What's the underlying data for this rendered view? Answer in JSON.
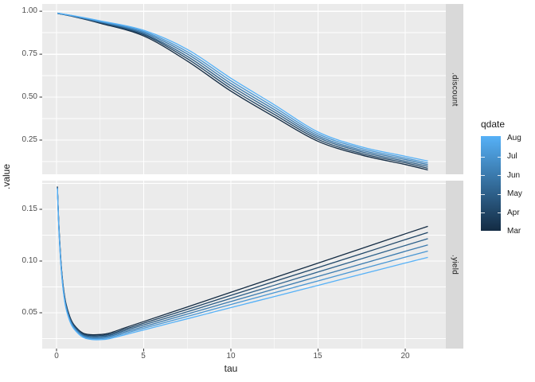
{
  "chart_data": {
    "type": "line",
    "title": "",
    "xlabel": "tau",
    "ylabel": ".value",
    "grid": "on",
    "panel_background": "#EBEBEB",
    "strip_background": "#D9D9D9",
    "gridline_color": "#FFFFFF",
    "axis_text_color": "#4D4D4D",
    "xlim": [
      -0.82,
      22.33
    ],
    "x_ticks": {
      "major": [
        0,
        5,
        10,
        15,
        20
      ],
      "minor": [
        2.5,
        7.5,
        12.5,
        17.5
      ],
      "labels": [
        "0",
        "5",
        "10",
        "15",
        "20"
      ]
    },
    "legend": {
      "title": "qdate",
      "position": "right",
      "labels": [
        "Aug",
        "Jul",
        "Jun",
        "May",
        "Apr",
        "Mar"
      ],
      "gradient_top": "#56B1F7",
      "gradient_bottom": "#132B43"
    },
    "series_names": [
      "Mar",
      "Apr",
      "May",
      "Jun",
      "Jul",
      "Aug"
    ],
    "series_colors": [
      "#132B43",
      "#204667",
      "#2E618B",
      "#3B7BAF",
      "#4996D3",
      "#56B1F7"
    ],
    "facets": [
      {
        "name": ".discount",
        "ylim": [
          0.051,
          1.042
        ],
        "y_ticks": {
          "major": [
            1.0,
            0.75,
            0.5,
            0.25
          ],
          "minor": [
            0.875,
            0.625,
            0.375,
            0.125
          ],
          "labels": [
            "1.00",
            "0.75",
            "0.50",
            "0.25"
          ]
        },
        "series": [
          {
            "name": "Mar",
            "points": [
              [
                0.05,
                0.987
              ],
              [
                1,
                0.968
              ],
              [
                2.5,
                0.93
              ],
              [
                5,
                0.856
              ],
              [
                7.5,
                0.71
              ],
              [
                10,
                0.535
              ],
              [
                12.5,
                0.385
              ],
              [
                15,
                0.243
              ],
              [
                17.5,
                0.163
              ],
              [
                20,
                0.108
              ],
              [
                21.3,
                0.076
              ]
            ]
          },
          {
            "name": "Apr",
            "points": [
              [
                0.05,
                0.987
              ],
              [
                1,
                0.969
              ],
              [
                2.5,
                0.933
              ],
              [
                5,
                0.863
              ],
              [
                7.5,
                0.724
              ],
              [
                10,
                0.55
              ],
              [
                12.5,
                0.399
              ],
              [
                15,
                0.254
              ],
              [
                17.5,
                0.172
              ],
              [
                20,
                0.118
              ],
              [
                21.3,
                0.086
              ]
            ]
          },
          {
            "name": "May",
            "points": [
              [
                0.05,
                0.988
              ],
              [
                1,
                0.97
              ],
              [
                2.5,
                0.936
              ],
              [
                5,
                0.869
              ],
              [
                7.5,
                0.737
              ],
              [
                10,
                0.565
              ],
              [
                12.5,
                0.413
              ],
              [
                15,
                0.265
              ],
              [
                17.5,
                0.182
              ],
              [
                20,
                0.127
              ],
              [
                21.3,
                0.097
              ]
            ]
          },
          {
            "name": "Jun",
            "points": [
              [
                0.05,
                0.988
              ],
              [
                1,
                0.971
              ],
              [
                2.5,
                0.938
              ],
              [
                5,
                0.876
              ],
              [
                7.5,
                0.751
              ],
              [
                10,
                0.58
              ],
              [
                12.5,
                0.427
              ],
              [
                15,
                0.275
              ],
              [
                17.5,
                0.191
              ],
              [
                20,
                0.137
              ],
              [
                21.3,
                0.107
              ]
            ]
          },
          {
            "name": "Jul",
            "points": [
              [
                0.05,
                0.989
              ],
              [
                1,
                0.972
              ],
              [
                2.5,
                0.941
              ],
              [
                5,
                0.882
              ],
              [
                7.5,
                0.764
              ],
              [
                10,
                0.595
              ],
              [
                12.5,
                0.441
              ],
              [
                15,
                0.286
              ],
              [
                17.5,
                0.201
              ],
              [
                20,
                0.146
              ],
              [
                21.3,
                0.117
              ]
            ]
          },
          {
            "name": "Aug",
            "points": [
              [
                0.05,
                0.989
              ],
              [
                1,
                0.973
              ],
              [
                2.5,
                0.944
              ],
              [
                5,
                0.889
              ],
              [
                7.5,
                0.778
              ],
              [
                10,
                0.61
              ],
              [
                12.5,
                0.455
              ],
              [
                15,
                0.297
              ],
              [
                17.5,
                0.21
              ],
              [
                20,
                0.156
              ],
              [
                21.3,
                0.128
              ]
            ]
          }
        ]
      },
      {
        "name": ".yield",
        "ylim": [
          0.0154,
          0.1777
        ],
        "y_ticks": {
          "major": [
            0.15,
            0.1,
            0.05
          ],
          "minor": [
            0.175,
            0.125,
            0.075,
            0.025
          ],
          "labels": [
            "0.15",
            "0.10",
            "0.05"
          ]
        },
        "series": [
          {
            "name": "Mar",
            "points": [
              [
                0.05,
                0.172
              ],
              [
                0.15,
                0.13
              ],
              [
                0.3,
                0.09
              ],
              [
                0.5,
                0.0625
              ],
              [
                0.75,
                0.047
              ],
              [
                1,
                0.0385
              ],
              [
                1.5,
                0.0305
              ],
              [
                2,
                0.0288
              ],
              [
                2.5,
                0.029
              ],
              [
                3,
                0.0302
              ],
              [
                4,
                0.0359
              ],
              [
                5,
                0.0415
              ],
              [
                7.5,
                0.0556
              ],
              [
                10,
                0.0698
              ],
              [
                12.5,
                0.0839
              ],
              [
                15,
                0.098
              ],
              [
                17.5,
                0.1121
              ],
              [
                20,
                0.1263
              ],
              [
                21.3,
                0.1336
              ]
            ]
          },
          {
            "name": "Apr",
            "points": [
              [
                0.05,
                0.1716
              ],
              [
                0.15,
                0.1292
              ],
              [
                0.3,
                0.0892
              ],
              [
                0.5,
                0.0616
              ],
              [
                0.75,
                0.0461
              ],
              [
                1,
                0.0377
              ],
              [
                1.5,
                0.0297
              ],
              [
                2,
                0.0279
              ],
              [
                2.5,
                0.028
              ],
              [
                3,
                0.0291
              ],
              [
                4,
                0.0345
              ],
              [
                5,
                0.0399
              ],
              [
                7.5,
                0.0533
              ],
              [
                10,
                0.0668
              ],
              [
                12.5,
                0.0803
              ],
              [
                15,
                0.0937
              ],
              [
                17.5,
                0.1071
              ],
              [
                20,
                0.1207
              ],
              [
                21.3,
                0.1276
              ]
            ]
          },
          {
            "name": "May",
            "points": [
              [
                0.05,
                0.1712
              ],
              [
                0.15,
                0.1284
              ],
              [
                0.3,
                0.0884
              ],
              [
                0.5,
                0.0607
              ],
              [
                0.75,
                0.0452
              ],
              [
                1,
                0.0369
              ],
              [
                1.5,
                0.0289
              ],
              [
                2,
                0.027
              ],
              [
                2.5,
                0.027
              ],
              [
                3,
                0.028
              ],
              [
                4,
                0.0332
              ],
              [
                5,
                0.0383
              ],
              [
                7.5,
                0.051
              ],
              [
                10,
                0.0639
              ],
              [
                12.5,
                0.0766
              ],
              [
                15,
                0.0894
              ],
              [
                17.5,
                0.1022
              ],
              [
                20,
                0.115
              ],
              [
                21.3,
                0.1216
              ]
            ]
          },
          {
            "name": "Jun",
            "points": [
              [
                0.05,
                0.1708
              ],
              [
                0.15,
                0.1276
              ],
              [
                0.3,
                0.0876
              ],
              [
                0.5,
                0.0598
              ],
              [
                0.75,
                0.0443
              ],
              [
                1,
                0.0361
              ],
              [
                1.5,
                0.0281
              ],
              [
                2,
                0.026
              ],
              [
                2.5,
                0.026
              ],
              [
                3,
                0.027
              ],
              [
                4,
                0.0318
              ],
              [
                5,
                0.0366
              ],
              [
                7.5,
                0.0488
              ],
              [
                10,
                0.0609
              ],
              [
                12.5,
                0.073
              ],
              [
                15,
                0.0851
              ],
              [
                17.5,
                0.0972
              ],
              [
                20,
                0.1094
              ],
              [
                21.3,
                0.1156
              ]
            ]
          },
          {
            "name": "Jul",
            "points": [
              [
                0.05,
                0.1704
              ],
              [
                0.15,
                0.1268
              ],
              [
                0.3,
                0.0868
              ],
              [
                0.5,
                0.0589
              ],
              [
                0.75,
                0.0434
              ],
              [
                1,
                0.0353
              ],
              [
                1.5,
                0.0273
              ],
              [
                2,
                0.0251
              ],
              [
                2.5,
                0.025
              ],
              [
                3,
                0.0259
              ],
              [
                4,
                0.0305
              ],
              [
                5,
                0.035
              ],
              [
                7.5,
                0.0465
              ],
              [
                10,
                0.058
              ],
              [
                12.5,
                0.0694
              ],
              [
                15,
                0.0808
              ],
              [
                17.5,
                0.0923
              ],
              [
                20,
                0.1038
              ],
              [
                21.3,
                0.1096
              ]
            ]
          },
          {
            "name": "Aug",
            "points": [
              [
                0.05,
                0.17
              ],
              [
                0.15,
                0.126
              ],
              [
                0.3,
                0.086
              ],
              [
                0.5,
                0.058
              ],
              [
                0.75,
                0.0425
              ],
              [
                1,
                0.0345
              ],
              [
                1.5,
                0.0265
              ],
              [
                2,
                0.0242
              ],
              [
                2.5,
                0.024
              ],
              [
                3,
                0.0248
              ],
              [
                4,
                0.0291
              ],
              [
                5,
                0.0334
              ],
              [
                7.5,
                0.0442
              ],
              [
                10,
                0.055
              ],
              [
                12.5,
                0.0657
              ],
              [
                15,
                0.0765
              ],
              [
                17.5,
                0.0873
              ],
              [
                20,
                0.0981
              ],
              [
                21.3,
                0.1036
              ]
            ]
          }
        ]
      }
    ]
  }
}
